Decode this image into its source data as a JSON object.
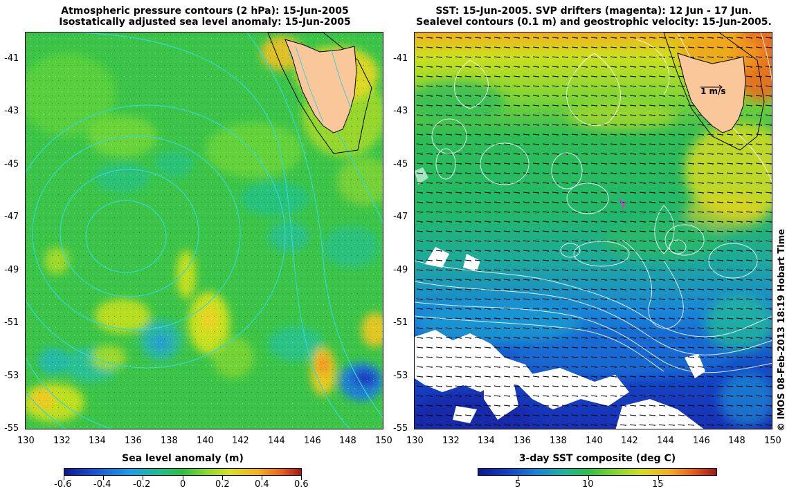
{
  "left_panel": {
    "title_line1": "Atmospheric pressure contours (2 hPa): 15-Jun-2005",
    "title_line2": "Isostatically adjusted sea level anomaly: 15-Jun-2005",
    "colorbar_label": "Sea level anomaly (m)",
    "colorbar_ticks": [
      "-0.6",
      "-0.4",
      "-0.2",
      "0",
      "0.2",
      "0.4",
      "0.6"
    ]
  },
  "right_panel": {
    "title_line1": "SST: 15-Jun-2005. SVP drifters (magenta): 12 Jun - 17 Jun.",
    "title_line2": "Sealevel contours (0.1 m) and geostrophic velocity: 15-Jun-2005.",
    "colorbar_label": "3-day SST composite (deg C)",
    "colorbar_ticks": [
      "5",
      "10",
      "15"
    ],
    "velocity_scale_label": "1 m/s"
  },
  "axes": {
    "lon_ticks": [
      "130",
      "132",
      "134",
      "136",
      "138",
      "140",
      "142",
      "144",
      "146",
      "148",
      "150"
    ],
    "lat_ticks": [
      "-41",
      "-43",
      "-45",
      "-47",
      "-49",
      "-51",
      "-53",
      "-55"
    ]
  },
  "credit": "© IMOS 08-Feb-2013 18:19 Hobart Time",
  "colors": {
    "land": "#f9c79a",
    "sla_base": "#3bc64a",
    "contour_cyan": "#36d6d6",
    "drifter_magenta": "#d23cd2"
  }
}
